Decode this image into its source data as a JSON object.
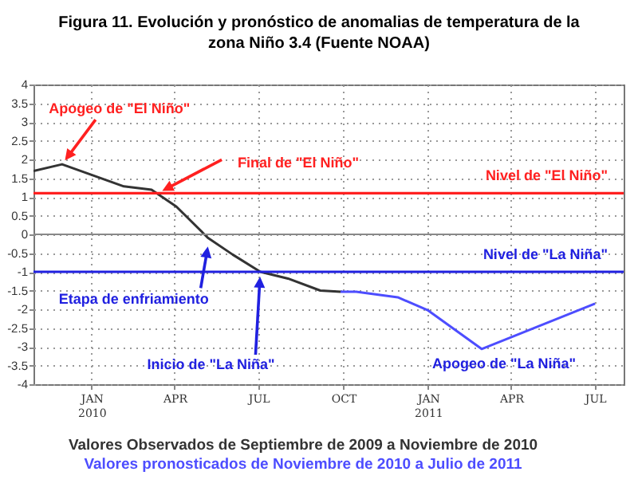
{
  "chart_data": {
    "type": "line",
    "title": "Figura 11. Evolución y pronóstico de anomalias de temperatura de la zona Niño 3.4 (Fuente NOAA)",
    "series": [
      {
        "color": "#333333",
        "x": [
          "2009-10-30",
          "2009-11-30",
          "2010-02-05",
          "2010-03-07",
          "2010-04-03",
          "2010-05-07",
          "2010-06-03",
          "2010-07-03",
          "2010-08-02",
          "2010-09-06",
          "2010-09-28"
        ],
        "values": [
          1.69,
          1.87,
          1.28,
          1.19,
          0.74,
          -0.09,
          -0.54,
          -1.0,
          -1.18,
          -1.5,
          -1.53
        ]
      },
      {
        "color": "#4d4dff",
        "x": [
          "2010-09-28",
          "2010-10-15",
          "2010-11-29",
          "2011-01-01",
          "2011-02-28",
          "2011-07-01"
        ],
        "values": [
          -1.53,
          -1.53,
          -1.68,
          -2.03,
          -3.06,
          -1.85
        ]
      }
    ],
    "xlim": [
      "2009-10-30",
      "2011-08-01"
    ],
    "xticks": [
      {
        "value": "2010-01-01",
        "label": "JAN\n2010"
      },
      {
        "value": "2010-04-01",
        "label": "APR"
      },
      {
        "value": "2010-07-01",
        "label": "JUL"
      },
      {
        "value": "2010-10-01",
        "label": "OCT"
      },
      {
        "value": "2011-01-01",
        "label": "JAN\n2011"
      },
      {
        "value": "2011-04-01",
        "label": "APR"
      },
      {
        "value": "2011-07-01",
        "label": "JUL"
      }
    ],
    "ylim": [
      -4,
      4
    ],
    "yticks": [
      -4,
      -3.5,
      -3,
      -2.5,
      -2,
      -1.5,
      -1,
      -0.5,
      0,
      0.5,
      1,
      1.5,
      2,
      2.5,
      3,
      3.5,
      4
    ],
    "grid": true,
    "ref_lines": [
      {
        "axis": "y",
        "value": 1.1,
        "label": "Nivel de \"El Niño\"",
        "color": "#ff2020"
      },
      {
        "axis": "y",
        "value": -1,
        "label": "Nivel de \"La Niña\"",
        "color": "#2020e0"
      },
      {
        "axis": "y",
        "value": 0,
        "color": "#888888"
      }
    ],
    "annotations": [
      {
        "text": "Apogeo de \"El Niño\"",
        "x": "2009-11-30",
        "y": 1.87
      },
      {
        "text": "Final de \"El Niño\"",
        "x": "2010-03-14",
        "y": 1.1
      },
      {
        "text": "Etapa de enfriamiento",
        "x": "2010-05-08",
        "y": -0.2
      },
      {
        "text": "Inicio de \"La Niña\"",
        "x": "2010-07-03",
        "y": -1
      },
      {
        "text": "Apogeo de \"La Niña\"",
        "x": "2011-02-28",
        "y": -3.06
      },
      "Valores Observados de Septiembre de 2009 a Noviembre de 2010",
      "Valores pronosticados de Noviembre de 2010 a Julio de 2011"
    ]
  }
}
